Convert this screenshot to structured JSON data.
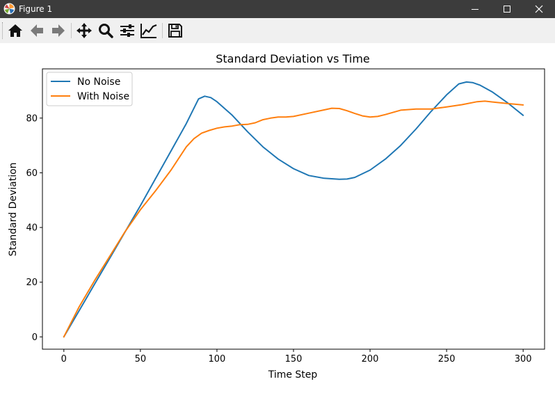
{
  "window": {
    "title": "Figure 1",
    "controls": [
      "minimize",
      "maximize",
      "close"
    ]
  },
  "toolbar": {
    "buttons": [
      {
        "name": "home",
        "icon": "home-icon"
      },
      {
        "name": "back",
        "icon": "arrow-left-icon"
      },
      {
        "name": "forward",
        "icon": "arrow-right-icon"
      },
      {
        "name": "pan",
        "icon": "move-icon"
      },
      {
        "name": "zoom",
        "icon": "magnifier-icon"
      },
      {
        "name": "configure-subplots",
        "icon": "sliders-icon"
      },
      {
        "name": "edit-axis",
        "icon": "line-chart-icon"
      },
      {
        "name": "save",
        "icon": "floppy-disk-icon"
      }
    ]
  },
  "chart_data": {
    "type": "line",
    "title": "Standard Deviation vs Time",
    "xlabel": "Time Step",
    "ylabel": "Standard Deviation",
    "xlim": [
      -14,
      314
    ],
    "ylim": [
      -4.5,
      98
    ],
    "xticks": [
      0,
      50,
      100,
      150,
      200,
      250,
      300
    ],
    "yticks": [
      0,
      20,
      40,
      60,
      80
    ],
    "grid": false,
    "legend_position": "upper-left",
    "series": [
      {
        "name": "No Noise",
        "color": "#1f77b4",
        "x": [
          0,
          10,
          20,
          30,
          40,
          50,
          60,
          70,
          80,
          88,
          92,
          96,
          100,
          110,
          120,
          130,
          140,
          150,
          160,
          170,
          180,
          185,
          190,
          200,
          210,
          220,
          230,
          240,
          250,
          258,
          263,
          267,
          272,
          280,
          290,
          300
        ],
        "y": [
          0,
          9.6,
          19.2,
          28.8,
          38.4,
          48,
          58,
          68,
          78,
          87,
          88,
          87.5,
          86,
          81,
          75,
          69.5,
          65,
          61.5,
          59,
          58,
          57.6,
          57.7,
          58.3,
          61,
          65,
          70,
          76,
          82.5,
          88.5,
          92.5,
          93.2,
          93,
          92,
          89.5,
          85.5,
          81
        ]
      },
      {
        "name": "With Noise",
        "color": "#ff7f0e",
        "x": [
          0,
          5,
          10,
          20,
          30,
          40,
          50,
          60,
          70,
          80,
          85,
          90,
          95,
          100,
          105,
          110,
          115,
          120,
          125,
          130,
          135,
          140,
          145,
          150,
          160,
          170,
          175,
          180,
          185,
          190,
          195,
          200,
          205,
          210,
          220,
          230,
          240,
          250,
          260,
          270,
          275,
          280,
          290,
          300
        ],
        "y": [
          0,
          5.5,
          11,
          20.5,
          29.5,
          38.5,
          46.5,
          53.5,
          61,
          69.5,
          72.5,
          74.5,
          75.5,
          76.3,
          76.8,
          77.1,
          77.6,
          77.7,
          78.3,
          79.4,
          80,
          80.4,
          80.4,
          80.6,
          81.8,
          83,
          83.6,
          83.5,
          82.7,
          81.7,
          80.8,
          80.4,
          80.6,
          81.3,
          82.9,
          83.3,
          83.3,
          84.1,
          84.9,
          86,
          86.2,
          85.9,
          85.3,
          84.8
        ]
      }
    ]
  }
}
